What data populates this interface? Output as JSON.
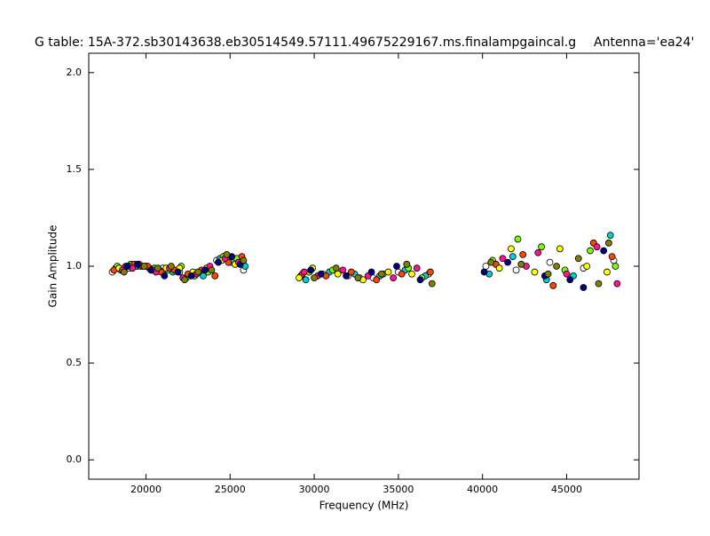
{
  "chart_data": {
    "type": "scatter",
    "title": "G table: 15A-372.sb30143638.eb30514549.57111.49675229167.ms.finalampgaincal.g",
    "annotation": "Antenna='ea24'",
    "x_label": "Frequency (MHz)",
    "y_label": "Gain Amplitude",
    "xlim": [
      16600,
      49300
    ],
    "ylim": [
      -0.1,
      2.1
    ],
    "xticks": [
      20000,
      25000,
      30000,
      35000,
      40000,
      45000
    ],
    "yticks": [
      {
        "value": 0,
        "label": "0.0"
      },
      0.5,
      {
        "value": 1,
        "label": "1.0"
      },
      1.5,
      {
        "value": 2,
        "label": "2.0"
      }
    ],
    "series": [
      {
        "color": "#ffffff",
        "x": [
          18000,
          18500,
          19000,
          19500,
          20000,
          21000,
          22000,
          23000,
          24200,
          25000,
          25800,
          29200,
          30500,
          32000,
          33500,
          35000,
          36800,
          40200,
          42000,
          44000,
          46000,
          47800
        ],
        "values": [
          0.97,
          0.98,
          0.99,
          1.0,
          1.0,
          0.99,
          0.97,
          0.96,
          1.03,
          1.02,
          0.98,
          0.95,
          0.96,
          0.95,
          0.94,
          0.97,
          0.96,
          1.0,
          0.98,
          1.02,
          0.99,
          1.03
        ]
      },
      {
        "color": "#00ced1",
        "x": [
          18200,
          18800,
          19400,
          20200,
          20800,
          21600,
          22400,
          23400,
          24400,
          25200,
          25900,
          29500,
          30900,
          32400,
          33900,
          35400,
          36600,
          40400,
          41800,
          43800,
          45400,
          47600
        ],
        "values": [
          0.99,
          1.0,
          1.0,
          0.99,
          0.98,
          0.97,
          0.94,
          0.95,
          1.04,
          1.03,
          1.0,
          0.93,
          0.97,
          0.96,
          0.95,
          0.98,
          0.95,
          0.96,
          1.05,
          0.93,
          0.95,
          1.16
        ]
      },
      {
        "color": "#7cfc00",
        "x": [
          18300,
          19100,
          19700,
          20500,
          21300,
          22100,
          22900,
          23700,
          24600,
          25400,
          29700,
          31100,
          32700,
          34100,
          35600,
          36400,
          40600,
          42100,
          43500,
          44900,
          46400,
          47900
        ],
        "values": [
          1.0,
          1.01,
          1.0,
          0.99,
          0.98,
          1.0,
          0.95,
          0.97,
          1.05,
          1.04,
          0.97,
          0.98,
          0.94,
          0.96,
          0.99,
          0.94,
          1.03,
          1.14,
          1.1,
          0.98,
          1.08,
          1.0
        ]
      },
      {
        "color": "#ff4500",
        "x": [
          18100,
          18700,
          19300,
          20100,
          20900,
          21700,
          22500,
          23300,
          24100,
          24900,
          25700,
          29300,
          30700,
          32200,
          33700,
          35200,
          36900,
          40800,
          42400,
          44200,
          46600,
          47700
        ],
        "values": [
          0.98,
          0.99,
          1.01,
          1.0,
          0.97,
          0.98,
          0.96,
          0.98,
          0.95,
          1.02,
          1.05,
          0.96,
          0.95,
          0.97,
          0.93,
          0.96,
          0.97,
          1.01,
          1.06,
          0.9,
          1.12,
          1.05
        ]
      },
      {
        "color": "#ffff00",
        "x": [
          18400,
          19000,
          19600,
          20400,
          21200,
          22000,
          22800,
          23600,
          24500,
          25300,
          29100,
          29900,
          31400,
          32900,
          34400,
          35800,
          41000,
          41700,
          43100,
          44600,
          46200,
          47400
        ],
        "values": [
          0.99,
          1.0,
          1.01,
          0.98,
          0.99,
          0.99,
          0.97,
          0.99,
          1.03,
          1.01,
          0.94,
          0.99,
          0.96,
          0.93,
          0.97,
          0.96,
          0.99,
          1.09,
          0.97,
          1.09,
          1.0,
          0.97
        ]
      },
      {
        "color": "#ff1493",
        "x": [
          18600,
          19200,
          19800,
          20600,
          21400,
          22200,
          23000,
          23800,
          24700,
          25500,
          29400,
          30200,
          31700,
          33200,
          34700,
          36100,
          41200,
          42600,
          43300,
          45000,
          46800,
          48000
        ],
        "values": [
          0.98,
          0.99,
          1.0,
          0.97,
          0.99,
          0.94,
          0.96,
          1.0,
          1.04,
          1.02,
          0.97,
          0.95,
          0.98,
          0.95,
          0.94,
          0.99,
          1.04,
          1.0,
          1.07,
          0.96,
          1.1,
          0.91
        ]
      },
      {
        "color": "#000080",
        "x": [
          18900,
          19500,
          20300,
          21100,
          21900,
          22700,
          23500,
          24300,
          25100,
          25600,
          29800,
          30400,
          31900,
          33400,
          34900,
          36300,
          40100,
          41500,
          43700,
          45200,
          46000,
          47200
        ],
        "values": [
          1.0,
          1.01,
          0.98,
          0.95,
          0.97,
          0.95,
          0.98,
          1.02,
          1.05,
          1.01,
          0.98,
          0.96,
          0.95,
          0.97,
          1.0,
          0.93,
          0.97,
          1.02,
          0.95,
          0.93,
          0.89,
          1.08
        ]
      },
      {
        "color": "#808000",
        "x": [
          18700,
          19900,
          20700,
          21500,
          22300,
          23100,
          23900,
          24800,
          25800,
          30000,
          31300,
          32600,
          34000,
          35500,
          37000,
          40500,
          42300,
          43900,
          44400,
          45700,
          46900,
          47500
        ],
        "values": [
          0.97,
          1.0,
          0.99,
          1.0,
          0.93,
          0.97,
          0.98,
          1.06,
          1.03,
          0.94,
          0.99,
          0.94,
          0.96,
          1.01,
          0.91,
          1.02,
          1.01,
          0.96,
          1.0,
          1.04,
          0.91,
          1.12
        ]
      }
    ]
  }
}
